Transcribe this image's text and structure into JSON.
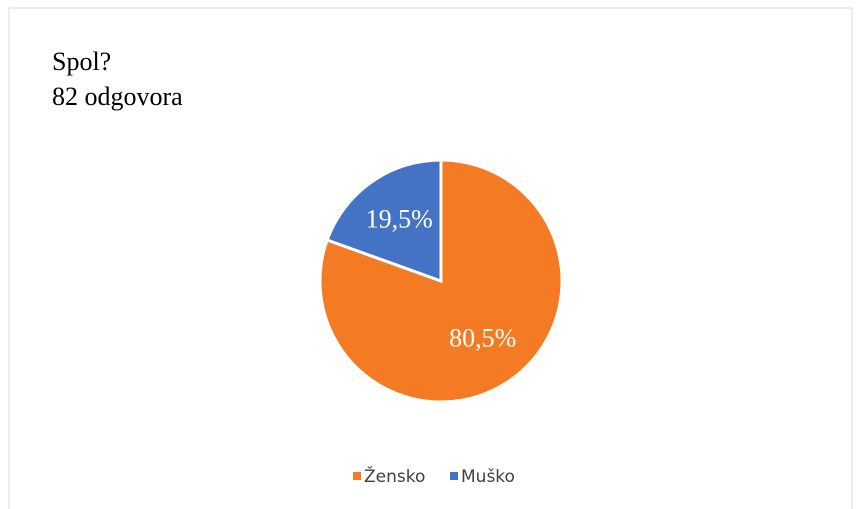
{
  "chart_data": {
    "type": "pie",
    "title": "Spol?",
    "subtitle": "82 odgovora",
    "categories": [
      "Žensko",
      "Muško"
    ],
    "values": [
      80.5,
      19.5
    ],
    "value_labels": [
      "80,5%",
      "19,5%"
    ],
    "colors": [
      "#f47a23",
      "#4472c4"
    ],
    "legend": "bottom"
  }
}
